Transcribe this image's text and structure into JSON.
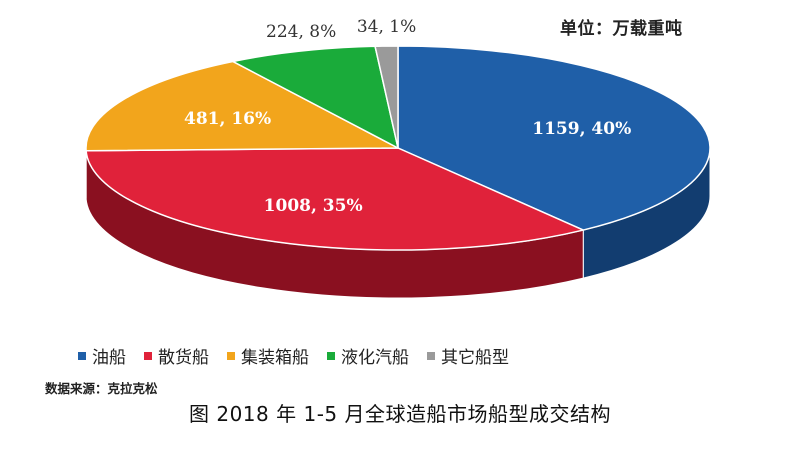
{
  "unit_label": "单位：万载重吨",
  "source": "数据来源：克拉克松",
  "caption": "图 2018 年 1-5 月全球造船市场船型成交结构",
  "chart_data": {
    "type": "pie",
    "title": "",
    "slices": [
      {
        "name": "油船",
        "value": 1159,
        "percent": 40,
        "label": "1159, 40%",
        "color": "#1f5fa8",
        "side_color": "#123d70",
        "label_color": "#ffffff",
        "label_inside": true
      },
      {
        "name": "散货船",
        "value": 1008,
        "percent": 35,
        "label": "1008, 35%",
        "color": "#e0223a",
        "side_color": "#8a1020",
        "label_color": "#ffffff",
        "label_inside": true
      },
      {
        "name": "集装箱船",
        "value": 481,
        "percent": 16,
        "label": "481, 16%",
        "color": "#f2a51c",
        "side_color": "#a86d0c",
        "label_color": "#ffffff",
        "label_inside": true
      },
      {
        "name": "液化汽船",
        "value": 224,
        "percent": 8,
        "label": "224, 8%",
        "color": "#1aab3a",
        "side_color": "#0f6b24",
        "label_color": "#333333",
        "label_inside": false
      },
      {
        "name": "其它船型",
        "value": 34,
        "percent": 1,
        "label": "34, 1%",
        "color": "#9a9a9a",
        "side_color": "#5e5e5e",
        "label_color": "#333333",
        "label_inside": false
      }
    ],
    "legend_position": "bottom",
    "style": "3d-pie"
  }
}
